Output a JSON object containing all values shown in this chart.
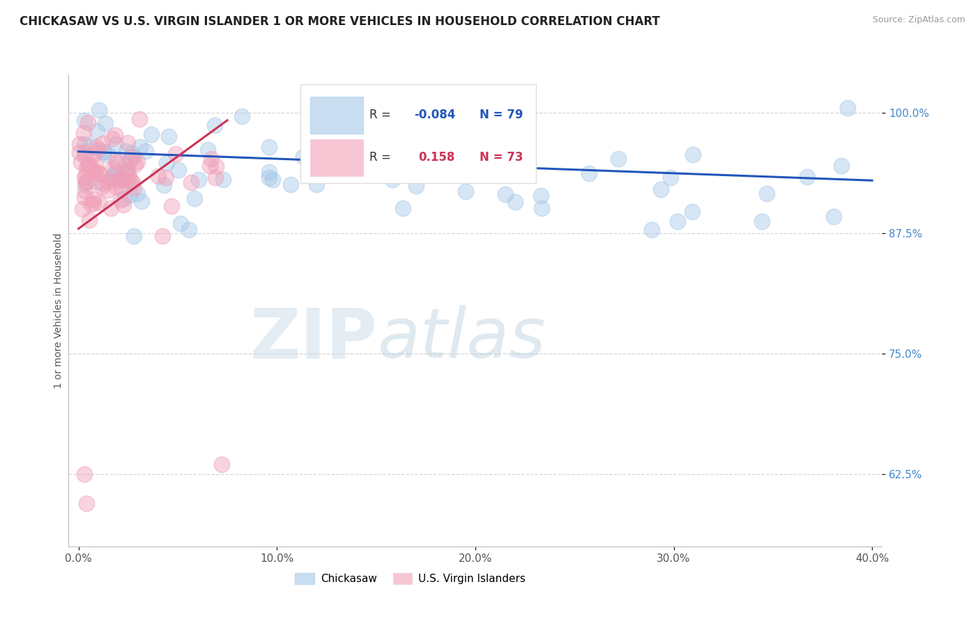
{
  "title": "CHICKASAW VS U.S. VIRGIN ISLANDER 1 OR MORE VEHICLES IN HOUSEHOLD CORRELATION CHART",
  "source": "Source: ZipAtlas.com",
  "ylabel": "1 or more Vehicles in Household",
  "x_tick_labels": [
    "0.0%",
    "10.0%",
    "20.0%",
    "30.0%",
    "40.0%"
  ],
  "x_tick_values": [
    0.0,
    10.0,
    20.0,
    30.0,
    40.0
  ],
  "y_tick_labels": [
    "62.5%",
    "75.0%",
    "87.5%",
    "100.0%"
  ],
  "y_tick_values": [
    62.5,
    75.0,
    87.5,
    100.0
  ],
  "xlim": [
    -0.5,
    40.5
  ],
  "ylim": [
    55.0,
    104.0
  ],
  "legend_labels": [
    "Chickasaw",
    "U.S. Virgin Islanders"
  ],
  "blue_color": "#A8C8E8",
  "pink_color": "#F0A0B8",
  "blue_line_color": "#2255BB",
  "pink_line_color": "#CC3355",
  "watermark_zip": "ZIP",
  "watermark_atlas": "atlas"
}
